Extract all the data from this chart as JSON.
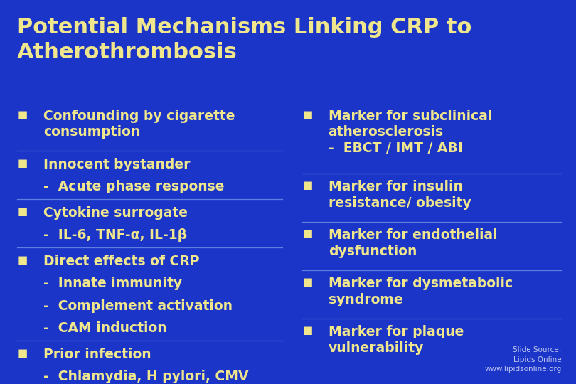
{
  "bg_color": "#1a35c8",
  "title_color": "#f0e68c",
  "text_color": "#f0e68c",
  "line_color": "#6080e0",
  "bullet_color": "#f0e68c",
  "source_color": "#c0c8f0",
  "title": "Potential Mechanisms Linking CRP to\nAtherothrombosis",
  "title_fontsize": 22,
  "content_fontsize": 13.5,
  "source_fontsize": 7.5,
  "left_items": [
    {
      "bullet": true,
      "text": "Confounding by cigarette\nconsumption",
      "divider": false
    },
    {
      "bullet": false,
      "text": "",
      "divider": true
    },
    {
      "bullet": true,
      "text": "Innocent bystander",
      "divider": false
    },
    {
      "bullet": false,
      "text": "-  Acute phase response",
      "divider": false
    },
    {
      "bullet": false,
      "text": "",
      "divider": true
    },
    {
      "bullet": true,
      "text": "Cytokine surrogate",
      "divider": false
    },
    {
      "bullet": false,
      "text": "-  IL-6, TNF-α, IL-1β",
      "divider": false
    },
    {
      "bullet": false,
      "text": "",
      "divider": true
    },
    {
      "bullet": true,
      "text": "Direct effects of CRP",
      "divider": false
    },
    {
      "bullet": false,
      "text": "-  Innate immunity",
      "divider": false
    },
    {
      "bullet": false,
      "text": "-  Complement activation",
      "divider": false
    },
    {
      "bullet": false,
      "text": "-  CAM induction",
      "divider": false
    },
    {
      "bullet": false,
      "text": "",
      "divider": true
    },
    {
      "bullet": true,
      "text": "Prior infection",
      "divider": false
    },
    {
      "bullet": false,
      "text": "-  Chlamydia, H pylori, CMV",
      "divider": false
    }
  ],
  "right_items": [
    {
      "bullet": true,
      "text": "Marker for subclinical\natherosclerosis\n-  EBCT / IMT / ABI",
      "divider": false
    },
    {
      "bullet": false,
      "text": "",
      "divider": true
    },
    {
      "bullet": true,
      "text": "Marker for insulin\nresistance/ obesity",
      "divider": false
    },
    {
      "bullet": false,
      "text": "",
      "divider": true
    },
    {
      "bullet": true,
      "text": "Marker for endothelial\ndysfunction",
      "divider": false
    },
    {
      "bullet": false,
      "text": "",
      "divider": true
    },
    {
      "bullet": true,
      "text": "Marker for dysmetabolic\nsyndrome",
      "divider": false
    },
    {
      "bullet": false,
      "text": "",
      "divider": true
    },
    {
      "bullet": true,
      "text": "Marker for plaque\nvulnerability",
      "divider": false
    }
  ],
  "source_text": "Slide Source:\nLipids Online\nwww.lipidsonline.org"
}
